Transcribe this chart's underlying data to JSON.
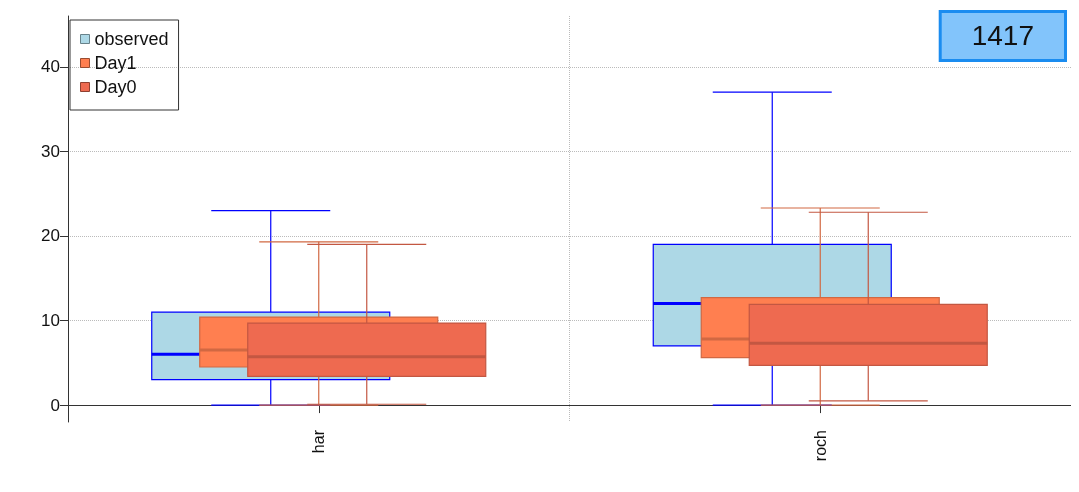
{
  "chart_data": {
    "type": "box",
    "categories": [
      "har",
      "roch"
    ],
    "ylim": [
      -2,
      46
    ],
    "yticks": [
      0,
      10,
      20,
      30,
      40
    ],
    "grid": true,
    "legend": "top left",
    "annotations": [
      "1417"
    ],
    "series": [
      {
        "name": "observed",
        "color": "#add8e6",
        "boxes": [
          {
            "low": 0,
            "q1": 3,
            "median": 6,
            "q3": 11,
            "high": 23
          },
          {
            "low": 0,
            "q1": 7,
            "median": 12,
            "q3": 19,
            "high": 37
          }
        ]
      },
      {
        "name": "Day1",
        "color": "#ff7f50",
        "boxes": [
          {
            "low": 0,
            "q1": 4.5,
            "median": 6.5,
            "q3": 10.4,
            "high": 19.3
          },
          {
            "low": 0,
            "q1": 5.6,
            "median": 7.8,
            "q3": 12.7,
            "high": 23.3
          }
        ]
      },
      {
        "name": "Day0",
        "color": "#ee6a50",
        "boxes": [
          {
            "low": 0.1,
            "q1": 3.4,
            "median": 5.7,
            "q3": 9.7,
            "high": 19
          },
          {
            "low": 0.5,
            "q1": 4.7,
            "median": 7.3,
            "q3": 11.9,
            "high": 22.8
          }
        ]
      }
    ]
  }
}
